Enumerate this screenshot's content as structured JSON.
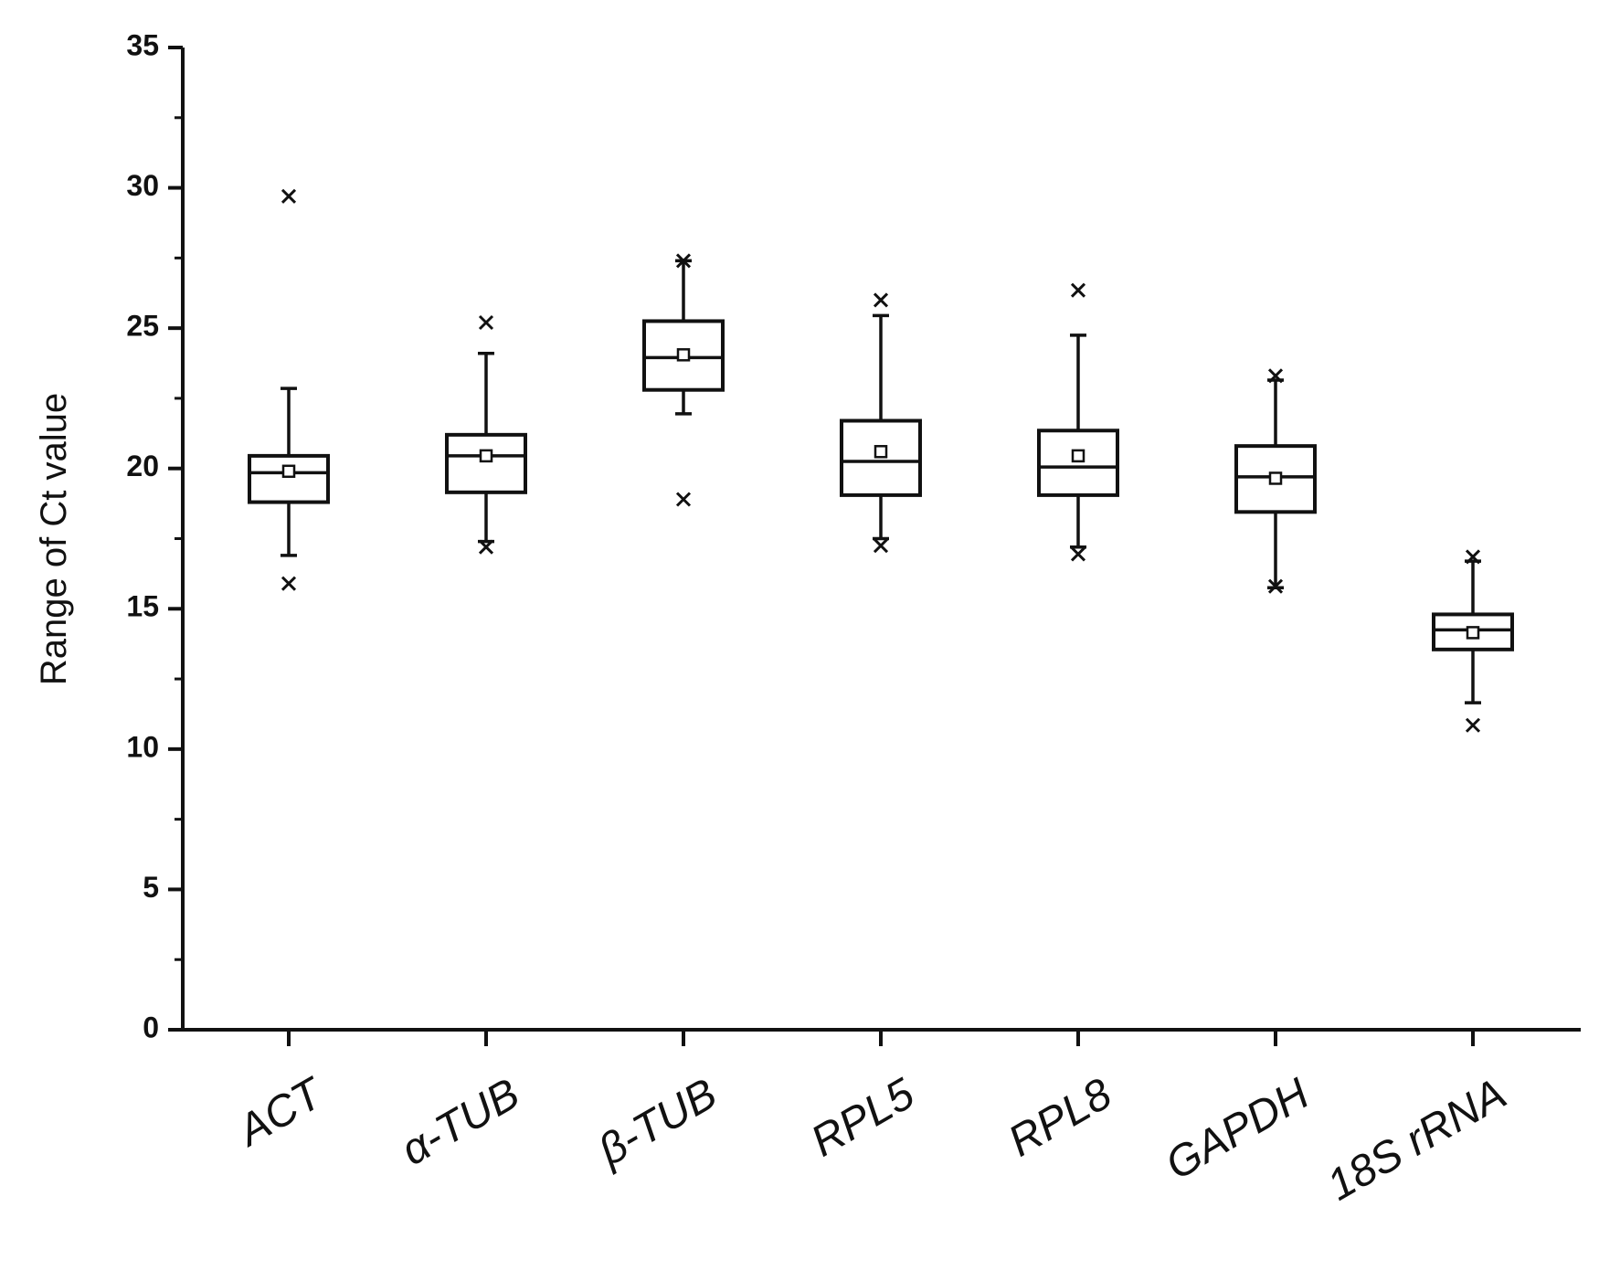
{
  "chart_data": {
    "type": "box",
    "y_label": "Range of Ct value",
    "categories": [
      "ACT",
      "α-TUB",
      "β-TUB",
      "RPL5",
      "RPL8",
      "GAPDH",
      "18S rRNA"
    ],
    "boxes": [
      {
        "whislo": 16.9,
        "q1": 18.8,
        "med": 19.85,
        "q3": 20.45,
        "whishi": 22.85,
        "mean": 19.9,
        "outliers": [
          29.7,
          15.9
        ]
      },
      {
        "whislo": 17.4,
        "q1": 19.15,
        "med": 20.45,
        "q3": 21.2,
        "whishi": 24.1,
        "mean": 20.45,
        "outliers": [
          25.2,
          17.2
        ]
      },
      {
        "whislo": 21.95,
        "q1": 22.8,
        "med": 23.95,
        "q3": 25.25,
        "whishi": 27.4,
        "mean": 24.05,
        "outliers": [
          27.4,
          18.9
        ]
      },
      {
        "whislo": 17.5,
        "q1": 19.05,
        "med": 20.25,
        "q3": 21.7,
        "whishi": 25.45,
        "mean": 20.6,
        "outliers": [
          26.0,
          17.25
        ]
      },
      {
        "whislo": 17.2,
        "q1": 19.05,
        "med": 20.05,
        "q3": 21.35,
        "whishi": 24.75,
        "mean": 20.45,
        "outliers": [
          26.35,
          16.95
        ]
      },
      {
        "whislo": 15.75,
        "q1": 18.45,
        "med": 19.7,
        "q3": 20.8,
        "whishi": 23.15,
        "mean": 19.65,
        "outliers": [
          23.3,
          15.8
        ]
      },
      {
        "whislo": 11.65,
        "q1": 13.55,
        "med": 14.25,
        "q3": 14.8,
        "whishi": 16.7,
        "mean": 14.15,
        "outliers": [
          16.85,
          10.85
        ]
      }
    ],
    "color": "#111111",
    "ylim": [
      0,
      35
    ],
    "yticks": [
      0,
      5,
      10,
      15,
      20,
      25,
      30,
      35
    ],
    "minor_yticks": [
      2.5,
      7.5,
      12.5,
      17.5,
      22.5,
      27.5,
      32.5
    ]
  }
}
